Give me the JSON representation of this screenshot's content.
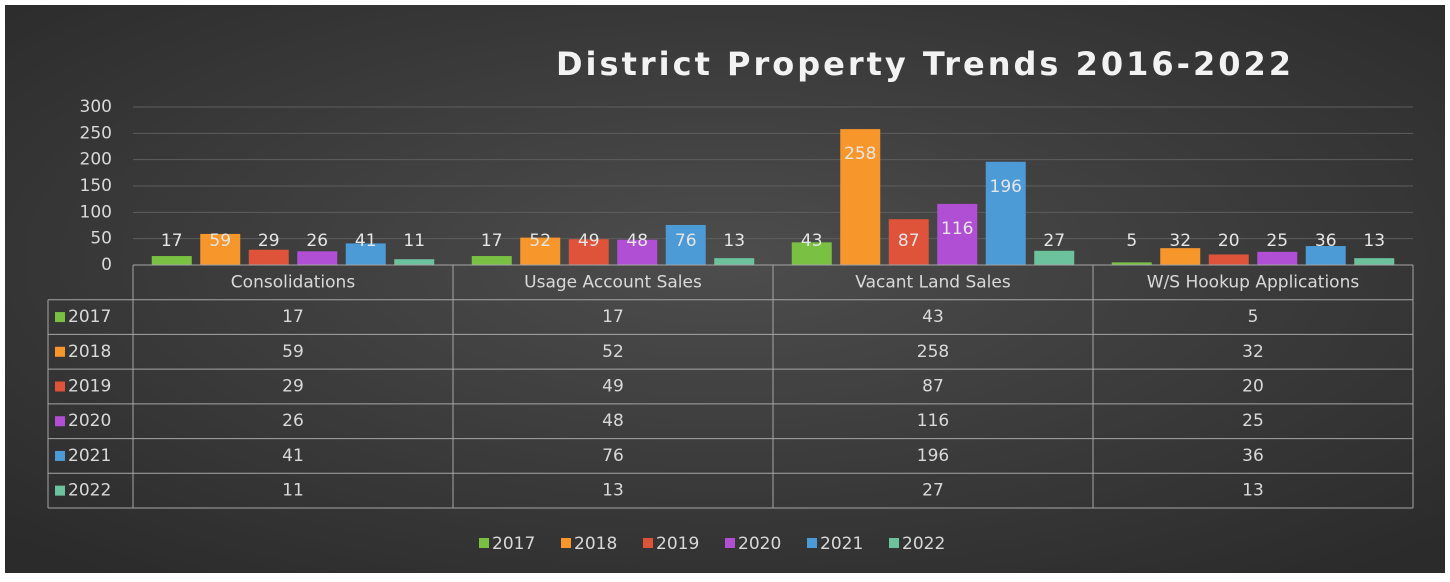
{
  "chart_data": {
    "type": "bar",
    "title": "District Property Trends 2016-2022",
    "categories": [
      "Consolidations",
      "Usage Account Sales",
      "Vacant Land Sales",
      "W/S Hookup Applications"
    ],
    "series": [
      {
        "name": "2017",
        "color": "#7ac143",
        "values": [
          17,
          17,
          43,
          5
        ]
      },
      {
        "name": "2018",
        "color": "#f7962b",
        "values": [
          59,
          52,
          258,
          32
        ]
      },
      {
        "name": "2019",
        "color": "#de5339",
        "values": [
          29,
          49,
          87,
          20
        ]
      },
      {
        "name": "2020",
        "color": "#b14fd4",
        "values": [
          26,
          48,
          116,
          25
        ]
      },
      {
        "name": "2021",
        "color": "#4c9ad6",
        "values": [
          41,
          76,
          196,
          36
        ]
      },
      {
        "name": "2022",
        "color": "#6cc29c",
        "values": [
          11,
          13,
          27,
          13
        ]
      }
    ],
    "ylim": [
      0,
      300
    ],
    "yticks": [
      0,
      50,
      100,
      150,
      200,
      250,
      300
    ],
    "grid": true,
    "legend": "bottom"
  }
}
